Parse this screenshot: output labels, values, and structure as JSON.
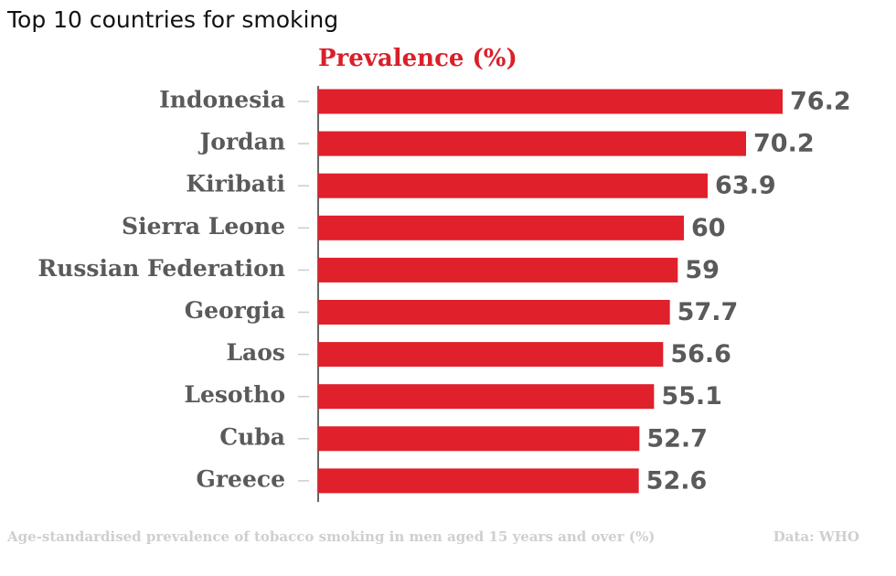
{
  "chart_data": {
    "type": "bar",
    "title": "Top 10 countries for smoking",
    "subtitle": "Prevalence (%)",
    "categories": [
      "Indonesia",
      "Jordan",
      "Kiribati",
      "Sierra Leone",
      "Russian Federation",
      "Georgia",
      "Laos",
      "Lesotho",
      "Cuba",
      "Greece"
    ],
    "values": [
      76.2,
      70.2,
      63.9,
      60,
      59,
      57.7,
      56.6,
      55.1,
      52.7,
      52.6
    ],
    "color": "#e0202a",
    "caption": "Age-standardised prevalence of tobacco smoking in men aged 15 years and over (%)",
    "source": "Data: WHO"
  }
}
